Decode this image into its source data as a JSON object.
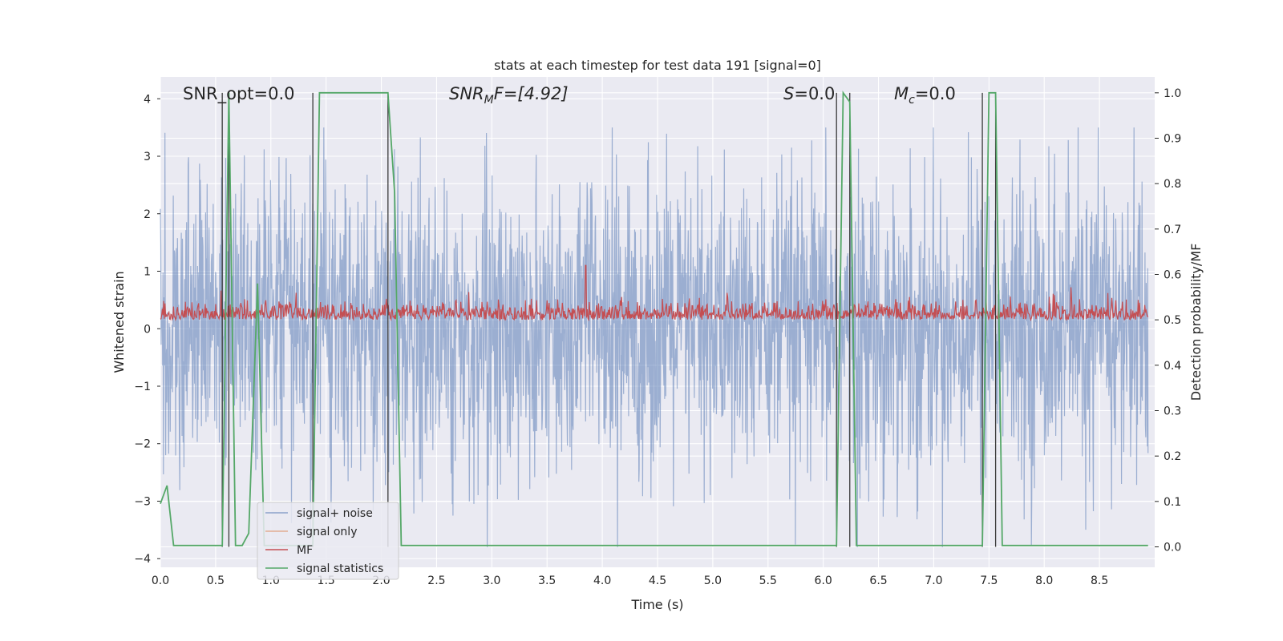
{
  "chart_data": {
    "type": "line",
    "title": "stats at each timestep for test data 191 [signal=0]",
    "xlabel": "Time (s)",
    "ylabel": "Whitened strain",
    "y2label": "Detection probability/MF",
    "xlim": [
      0.0,
      9.0
    ],
    "ylim": [
      -4.15,
      4.38
    ],
    "y2lim": [
      -0.045,
      1.035
    ],
    "xticks": [
      "0.0",
      "0.5",
      "1.0",
      "1.5",
      "2.0",
      "2.5",
      "3.0",
      "3.5",
      "4.0",
      "4.5",
      "5.0",
      "5.5",
      "6.0",
      "6.5",
      "7.0",
      "7.5",
      "8.0",
      "8.5"
    ],
    "yticks": [
      "4",
      "3",
      "2",
      "1",
      "0",
      "−1",
      "−2",
      "−3",
      "−4"
    ],
    "y2ticks": [
      "1.0",
      "0.9",
      "0.8",
      "0.7",
      "0.6",
      "0.5",
      "0.4",
      "0.3",
      "0.2",
      "0.1",
      "0.0"
    ],
    "grid": true,
    "legend": "lower-left",
    "annotations": {
      "snr_opt": "SNR_opt=0.0",
      "snr_mf_main": "SNR",
      "snr_mf_sub": "M",
      "snr_mf_tail": "F=[4.92]",
      "s_main": "S",
      "s_tail": "=0.0",
      "mc_main": "M",
      "mc_sub": "c",
      "mc_tail": "=0.0"
    },
    "series": [
      {
        "name": "signal+ noise",
        "color": "#4c72b0",
        "axis": "left",
        "description": "whitened noise, spans roughly -3.8 to 3.5"
      },
      {
        "name": "signal only",
        "color": "#dd8452",
        "axis": "left",
        "values": []
      },
      {
        "name": "MF",
        "color": "#c44e52",
        "axis": "right",
        "description": "matched filter, roughly 0.50 to 0.55, peak ~0.62 near 3.85 s"
      },
      {
        "name": "signal statistics",
        "color": "#55a868",
        "axis": "right",
        "x": [
          0.0,
          0.06,
          0.12,
          0.56,
          0.62,
          0.68,
          0.74,
          0.8,
          0.88,
          0.94,
          1.38,
          1.44,
          1.5,
          2.06,
          2.12,
          2.18,
          6.12,
          6.18,
          6.24,
          6.3,
          7.44,
          7.5,
          7.56,
          7.62,
          8.94
        ],
        "values": [
          0.095,
          0.135,
          0.003,
          0.003,
          1.0,
          0.003,
          0.003,
          0.03,
          0.58,
          0.003,
          0.003,
          1.0,
          1.0,
          1.0,
          0.78,
          0.003,
          0.003,
          1.0,
          0.98,
          0.003,
          0.003,
          1.0,
          1.0,
          0.003,
          0.003
        ]
      }
    ],
    "vlines": [
      0.56,
      0.62,
      1.38,
      2.06,
      6.12,
      6.24,
      7.44,
      7.56
    ]
  }
}
